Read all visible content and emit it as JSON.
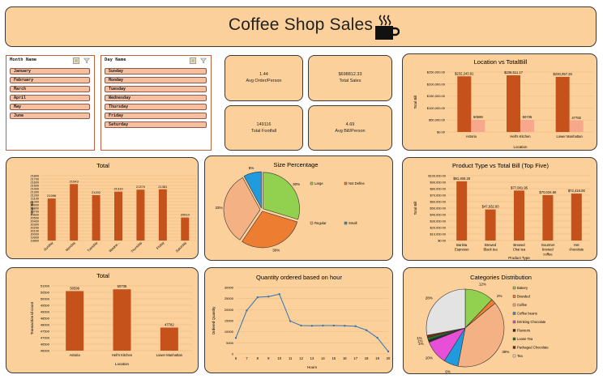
{
  "title": "Coffee Shop Sales",
  "icons": {
    "cup": "coffee-cup-icon",
    "filter": "filter-icon",
    "multiselect": "multi-select-icon"
  },
  "colors": {
    "panel": "#fcd09a",
    "bar": "#c5511b",
    "bar_light": "#f7a88c",
    "line": "#2e75b6"
  },
  "slicers": {
    "month": {
      "header": "Month Name",
      "items": [
        "January",
        "February",
        "March",
        "April",
        "May",
        "June"
      ]
    },
    "day": {
      "header": "Day Name",
      "items": [
        "Sunday",
        "Monday",
        "Tuesday",
        "Wednesday",
        "Thursday",
        "Friday",
        "Saturday"
      ]
    }
  },
  "kpis": [
    {
      "value": "1.44",
      "label": "Avg Order/Person"
    },
    {
      "value": "$698812.33",
      "label": "Total Sales"
    },
    {
      "value": "149116",
      "label": "Total Footfall"
    },
    {
      "value": "4.69",
      "label": "Avg Bill/Person"
    }
  ],
  "chart_data": [
    {
      "id": "location_totalbill",
      "type": "bar",
      "title": "Location vs TotalBill",
      "xlabel": "Location",
      "ylabel": "Total Bill",
      "categories": [
        "Astoria",
        "Hell's Kitchen",
        "Lower Manhattan"
      ],
      "series": [
        {
          "values": [
            232243.91,
            236511.17,
            230057.25
          ],
          "labels": [
            "$232,243.91",
            "$236,511.17",
            "$230,057.25"
          ]
        },
        {
          "values": [
            50599,
            50735,
            47782
          ],
          "labels": [
            "50599",
            "50735",
            "47782"
          ]
        }
      ],
      "yticks": [
        "$0.00",
        "$50,000.00",
        "$100,000.00",
        "$150,000.00",
        "$200,000.00",
        "$250,000.00"
      ],
      "ylim": [
        0,
        250000
      ]
    },
    {
      "id": "total_by_day",
      "type": "bar",
      "title": "Total",
      "ylabel": "Total Bill",
      "categories": [
        "Sunday",
        "Monday",
        "Tuesday",
        "Wedne...",
        "Thursday",
        "Friday",
        "Saturday"
      ],
      "values": [
        21096,
        21543,
        21202,
        21310,
        21370,
        21381,
        20510
      ],
      "labels": [
        "21096",
        "21543",
        "21202",
        "21310",
        "21370",
        "21381",
        "20510"
      ],
      "yticks": [
        "19800",
        "19900",
        "20000",
        "20100",
        "20200",
        "20300",
        "20400",
        "20500",
        "20600",
        "20700",
        "20800",
        "20900",
        "21000",
        "21100",
        "21200",
        "21300",
        "21400",
        "21500",
        "21600",
        "21700",
        "21800"
      ],
      "ylim": [
        19800,
        21800
      ]
    },
    {
      "id": "size_percentage",
      "type": "pie",
      "title": "Size Percentage",
      "slices": [
        {
          "name": "Large",
          "value": 30,
          "label": "30%",
          "color": "#92d050"
        },
        {
          "name": "Not Define",
          "value": 30,
          "label": "30%",
          "color": "#ed7d31"
        },
        {
          "name": "Regular",
          "value": 33,
          "label": "33%",
          "color": "#f4b183"
        },
        {
          "name": "Small",
          "value": 8,
          "label": "8%",
          "color": "#1f9bde"
        }
      ]
    },
    {
      "id": "product_type_top5",
      "type": "bar",
      "title": "Product Type vs Total Bill (Top Five)",
      "xlabel": "Product Type",
      "ylabel": "Total Bill",
      "categories": [
        "Barista Espresso",
        "Brewed Black tea",
        "Brewed Chai tea",
        "Gourmet brewed coffee",
        "Hot chocolate"
      ],
      "values": [
        91406.2,
        47932.0,
        77081.95,
        70034.6,
        72416.0
      ],
      "labels": [
        "$91,406.20",
        "$47,932.00",
        "$77,081.95",
        "$70,034.60",
        "$72,416.00"
      ],
      "yticks": [
        "$0.00",
        "$10,000.00",
        "$20,000.00",
        "$30,000.00",
        "$40,000.00",
        "$50,000.00",
        "$60,000.00",
        "$70,000.00",
        "$80,000.00",
        "$90,000.00",
        "$100,000.00"
      ],
      "ylim": [
        0,
        100000
      ]
    },
    {
      "id": "total_by_location",
      "type": "bar",
      "title": "Total",
      "xlabel": "Location",
      "ylabel": "Transaction id count",
      "categories": [
        "Astoria",
        "Hell's Kitchen",
        "Lower Manhattan"
      ],
      "values": [
        50599,
        50735,
        47782
      ],
      "labels": [
        "50599",
        "50735",
        "47782"
      ],
      "yticks": [
        "46000",
        "46500",
        "47000",
        "47500",
        "48000",
        "48500",
        "49000",
        "49500",
        "50000",
        "50500",
        "51000"
      ],
      "ylim": [
        46000,
        51000
      ]
    },
    {
      "id": "quantity_by_hour",
      "type": "line",
      "title": "Quantity ordered   based on hour",
      "xlabel": "Hours",
      "ylabel": "Ordered Quantity",
      "x": [
        6,
        7,
        8,
        9,
        10,
        11,
        12,
        13,
        14,
        15,
        16,
        17,
        18,
        19,
        20
      ],
      "values": [
        7200,
        19600,
        25600,
        25900,
        27000,
        14800,
        12800,
        12700,
        12800,
        12800,
        12700,
        12500,
        10700,
        7300,
        1100
      ],
      "yticks": [
        "0",
        "5000",
        "10000",
        "15000",
        "20000",
        "25000",
        "30000"
      ],
      "ylim": [
        0,
        30000
      ]
    },
    {
      "id": "categories_distribution",
      "type": "pie",
      "title": "Categories Distribution",
      "slices": [
        {
          "name": "Bakery",
          "value": 12,
          "label": "12%",
          "color": "#92d050"
        },
        {
          "name": "Branded",
          "value": 2,
          "label": "2%",
          "color": "#ed7d31"
        },
        {
          "name": "Coffee",
          "value": 39,
          "label": "39%",
          "color": "#f4b183"
        },
        {
          "name": "Coffee beans",
          "value": 6,
          "label": "6%",
          "color": "#1f9bde"
        },
        {
          "name": "Drinking Chocolate",
          "value": 10,
          "label": "10%",
          "color": "#e84fd8"
        },
        {
          "name": "Flavours",
          "value": 1,
          "label": "1%",
          "color": "#2b2b2b"
        },
        {
          "name": "Loose Tea",
          "value": 1,
          "label": "1%",
          "color": "#1b7a2e"
        },
        {
          "name": "Packaged Chocolate",
          "value": 1,
          "label": "1%",
          "color": "#7f2a0c"
        },
        {
          "name": "Tea",
          "value": 28,
          "label": "28%",
          "color": "#e3e3e3"
        }
      ]
    }
  ]
}
